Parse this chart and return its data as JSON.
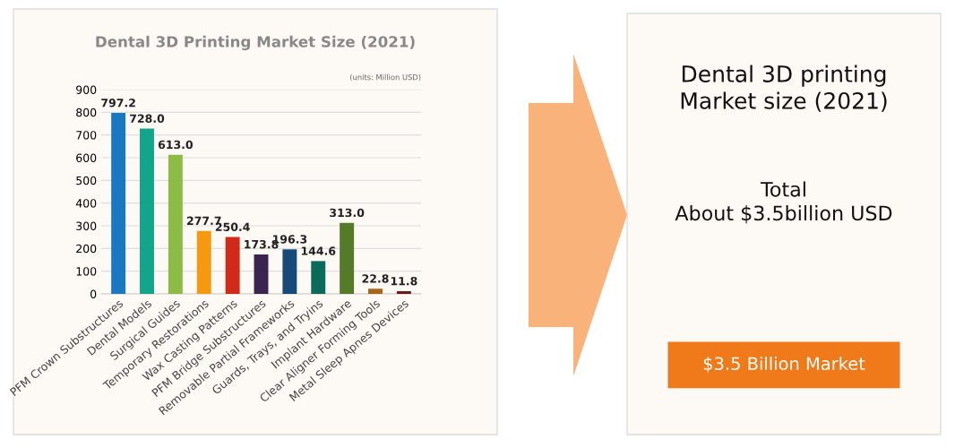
{
  "chart_data": [
    {
      "type": "bar",
      "title": "Dental 3D Printing Market Size (2021)",
      "categories": [
        "PFM Crown Substructures",
        "Dental Models",
        "Surgical Guides",
        "Temporary Restorations",
        "Wax Casting Patterns",
        "PFM Bridge Substructures",
        "Removable Partial Frameworks",
        "Guards, Trays, and Tryins",
        "Implant Hardware",
        "Clear Aligner Forming Tools",
        "Metal Sleep Apnes Devices"
      ],
      "values": [
        797.2,
        728.0,
        613.0,
        277.7,
        250.4,
        173.8,
        196.3,
        144.6,
        313.0,
        22.8,
        11.8
      ],
      "colors": [
        "#1a78c2",
        "#13a58a",
        "#8dbb45",
        "#f39a12",
        "#d02a1a",
        "#3b2450",
        "#174a78",
        "#0b6b5a",
        "#557a2a",
        "#a8661a",
        "#6a1a1a"
      ],
      "value_labels": [
        "797.2",
        "728.0",
        "613.0",
        "277.7",
        "250.4",
        "173.8",
        "196.3",
        "144.6",
        "313.0",
        "22.8",
        "11.8"
      ],
      "ylim": [
        0,
        900
      ],
      "yticks": [
        0,
        100,
        200,
        300,
        400,
        500,
        600,
        700,
        800,
        900
      ],
      "grid": "y",
      "annotations": [
        "(units: Million USD)"
      ]
    },
    {
      "type": "other",
      "annotations": [
        "Dental 3D printing\nMarket size (2021)",
        "Total\nAbout $3.5billion USD",
        "$3.5 Billion Market"
      ]
    }
  ]
}
